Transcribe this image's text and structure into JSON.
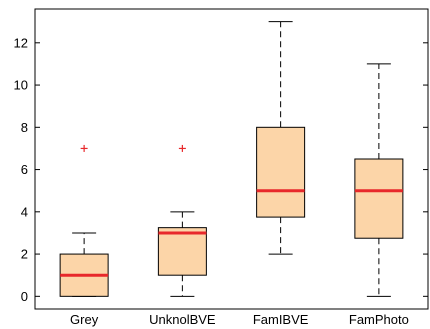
{
  "chart_data": {
    "type": "box",
    "title": "",
    "xlabel": "",
    "ylabel": "",
    "ylim": [
      -0.6,
      13.6
    ],
    "yticks": [
      0,
      2,
      4,
      6,
      8,
      10,
      12
    ],
    "grid": false,
    "categories": [
      "Grey",
      "UnknolBVE",
      "FamIBVE",
      "FamPhoto"
    ],
    "boxes": [
      {
        "category": "Grey",
        "whisker_low": 0,
        "q1": 0,
        "median": 1,
        "q3": 2,
        "whisker_high": 3,
        "outliers": [
          7
        ]
      },
      {
        "category": "UnknolBVE",
        "whisker_low": 0,
        "q1": 1,
        "median": 3,
        "q3": 3.25,
        "whisker_high": 4,
        "outliers": [
          7
        ]
      },
      {
        "category": "FamIBVE",
        "whisker_low": 2,
        "q1": 3.75,
        "median": 5,
        "q3": 8,
        "whisker_high": 13,
        "outliers": []
      },
      {
        "category": "FamPhoto",
        "whisker_low": 0,
        "q1": 2.75,
        "median": 5,
        "q3": 6.5,
        "whisker_high": 11,
        "outliers": []
      }
    ],
    "colors": {
      "box_fill": "#fcd5a8",
      "box_stroke": "#000000",
      "median": "#e8282b",
      "outlier": "#e8282b",
      "whisker": "#000000"
    }
  }
}
